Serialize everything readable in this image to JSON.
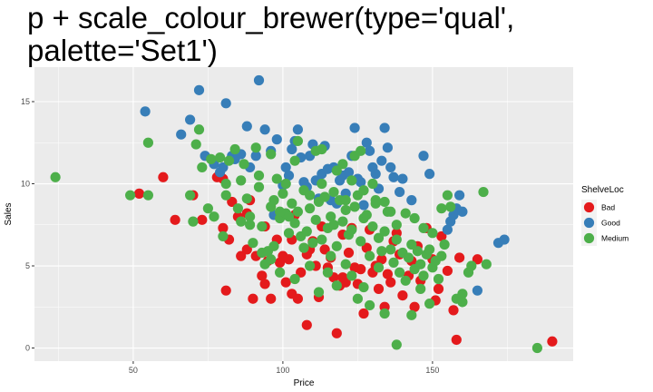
{
  "colors": {
    "panel_bg": "#ebebeb",
    "grid_major": "#ffffff",
    "Bad": "#e41a1c",
    "Good": "#377eb8",
    "Medium": "#4daf4a"
  },
  "chart_data": {
    "type": "scatter",
    "title": "p + scale_colour_brewer(type='qual', palette='Set1')",
    "title_lines": [
      "p + scale_colour_brewer(type='qual',",
      "palette='Set1')"
    ],
    "xlabel": "Price",
    "ylabel": "Sales",
    "xlim": [
      17,
      197
    ],
    "ylim": [
      -0.8,
      17.1
    ],
    "x_ticks": [
      50,
      100,
      150
    ],
    "y_ticks": [
      0,
      5,
      10,
      15
    ],
    "grid": true,
    "legend": {
      "title": "ShelveLoc",
      "position": "right",
      "entries": [
        "Bad",
        "Good",
        "Medium"
      ]
    },
    "series": [
      {
        "name": "Bad",
        "points": [
          [
            52,
            9.4
          ],
          [
            64,
            7.8
          ],
          [
            70,
            9.3
          ],
          [
            73,
            7.8
          ],
          [
            78,
            10.4
          ],
          [
            80,
            7.3
          ],
          [
            80,
            10.3
          ],
          [
            81,
            3.5
          ],
          [
            82,
            6.6
          ],
          [
            83,
            8.9
          ],
          [
            85,
            8.0
          ],
          [
            88,
            6.0
          ],
          [
            88,
            8.2
          ],
          [
            89,
            9.0
          ],
          [
            90,
            3.0
          ],
          [
            91,
            5.6
          ],
          [
            93,
            4.4
          ],
          [
            94,
            3.9
          ],
          [
            94,
            7.4
          ],
          [
            95,
            5.3
          ],
          [
            96,
            3.0
          ],
          [
            98,
            6.6
          ],
          [
            99,
            5.2
          ],
          [
            100,
            5.6
          ],
          [
            101,
            4.0
          ],
          [
            103,
            3.3
          ],
          [
            103,
            6.6
          ],
          [
            104,
            8.1
          ],
          [
            105,
            3.0
          ],
          [
            106,
            4.6
          ],
          [
            108,
            5.7
          ],
          [
            108,
            1.4
          ],
          [
            110,
            6.5
          ],
          [
            111,
            5.0
          ],
          [
            112,
            3.1
          ],
          [
            113,
            7.4
          ],
          [
            114,
            6.0
          ],
          [
            115,
            4.9
          ],
          [
            116,
            5.5
          ],
          [
            117,
            4.3
          ],
          [
            118,
            0.9
          ],
          [
            119,
            3.8
          ],
          [
            120,
            6.9
          ],
          [
            120,
            4.3
          ],
          [
            121,
            4.0
          ],
          [
            123,
            7.3
          ],
          [
            124,
            4.9
          ],
          [
            125,
            3.9
          ],
          [
            126,
            4.8
          ],
          [
            127,
            2.1
          ],
          [
            128,
            6.1
          ],
          [
            129,
            7.2
          ],
          [
            130,
            4.6
          ],
          [
            131,
            5.0
          ],
          [
            132,
            3.6
          ],
          [
            133,
            5.4
          ],
          [
            134,
            2.5
          ],
          [
            135,
            4.5
          ],
          [
            137,
            6.5
          ],
          [
            138,
            7.0
          ],
          [
            139,
            5.7
          ],
          [
            140,
            3.2
          ],
          [
            142,
            4.4
          ],
          [
            143,
            5.3
          ],
          [
            144,
            2.5
          ],
          [
            145,
            6.2
          ],
          [
            146,
            4.1
          ],
          [
            148,
            7.3
          ],
          [
            150,
            5.4
          ],
          [
            151,
            2.9
          ],
          [
            152,
            3.6
          ],
          [
            153,
            6.8
          ],
          [
            155,
            4.7
          ],
          [
            157,
            2.3
          ],
          [
            158,
            0.5
          ],
          [
            159,
            5.5
          ],
          [
            165,
            5.4
          ],
          [
            190,
            0.4
          ],
          [
            60,
            10.4
          ],
          [
            86,
            5.6
          ],
          [
            102,
            5.4
          ],
          [
            109,
            6.0
          ],
          [
            122,
            5.8
          ],
          [
            136,
            4.0
          ]
        ]
      },
      {
        "name": "Good",
        "points": [
          [
            54,
            14.4
          ],
          [
            66,
            13.0
          ],
          [
            69,
            13.9
          ],
          [
            72,
            15.7
          ],
          [
            74,
            11.7
          ],
          [
            77,
            11.2
          ],
          [
            79,
            10.7
          ],
          [
            80,
            11.0
          ],
          [
            81,
            14.9
          ],
          [
            83,
            11.7
          ],
          [
            84,
            11.5
          ],
          [
            86,
            11.8
          ],
          [
            88,
            13.5
          ],
          [
            89,
            11.0
          ],
          [
            91,
            11.7
          ],
          [
            92,
            16.3
          ],
          [
            94,
            13.3
          ],
          [
            96,
            12.0
          ],
          [
            97,
            8.1
          ],
          [
            98,
            12.7
          ],
          [
            100,
            9.9
          ],
          [
            101,
            11.0
          ],
          [
            102,
            10.5
          ],
          [
            103,
            12.1
          ],
          [
            104,
            12.6
          ],
          [
            105,
            13.3
          ],
          [
            106,
            11.6
          ],
          [
            107,
            10.1
          ],
          [
            108,
            9.8
          ],
          [
            109,
            11.7
          ],
          [
            110,
            12.4
          ],
          [
            111,
            10.2
          ],
          [
            112,
            9.1
          ],
          [
            113,
            10.6
          ],
          [
            114,
            12.3
          ],
          [
            115,
            10.9
          ],
          [
            116,
            9.0
          ],
          [
            117,
            11.0
          ],
          [
            118,
            8.8
          ],
          [
            119,
            10.2
          ],
          [
            120,
            10.5
          ],
          [
            121,
            9.4
          ],
          [
            122,
            10.7
          ],
          [
            123,
            11.7
          ],
          [
            124,
            13.4
          ],
          [
            125,
            10.3
          ],
          [
            126,
            10.1
          ],
          [
            127,
            8.7
          ],
          [
            128,
            12.5
          ],
          [
            129,
            12.0
          ],
          [
            130,
            11.0
          ],
          [
            131,
            10.6
          ],
          [
            132,
            9.7
          ],
          [
            133,
            11.4
          ],
          [
            134,
            13.4
          ],
          [
            135,
            12.2
          ],
          [
            136,
            11.0
          ],
          [
            137,
            10.4
          ],
          [
            139,
            9.5
          ],
          [
            140,
            10.3
          ],
          [
            143,
            9.0
          ],
          [
            147,
            11.7
          ],
          [
            149,
            10.6
          ],
          [
            155,
            7.2
          ],
          [
            156,
            7.7
          ],
          [
            157,
            8.1
          ],
          [
            158,
            8.5
          ],
          [
            159,
            9.3
          ],
          [
            160,
            8.3
          ],
          [
            165,
            3.5
          ],
          [
            172,
            6.4
          ],
          [
            174,
            6.6
          ]
        ]
      },
      {
        "name": "Medium",
        "points": [
          [
            24,
            10.4
          ],
          [
            49,
            9.3
          ],
          [
            55,
            9.3
          ],
          [
            55,
            12.5
          ],
          [
            69,
            9.3
          ],
          [
            70,
            7.7
          ],
          [
            71,
            12.4
          ],
          [
            72,
            13.3
          ],
          [
            73,
            11.0
          ],
          [
            75,
            8.5
          ],
          [
            76,
            11.5
          ],
          [
            77,
            8.0
          ],
          [
            79,
            11.6
          ],
          [
            80,
            6.8
          ],
          [
            81,
            9.3
          ],
          [
            82,
            11.4
          ],
          [
            84,
            12.1
          ],
          [
            85,
            8.5
          ],
          [
            86,
            7.7
          ],
          [
            87,
            11.2
          ],
          [
            88,
            9.1
          ],
          [
            89,
            7.5
          ],
          [
            90,
            6.4
          ],
          [
            91,
            12.2
          ],
          [
            92,
            9.8
          ],
          [
            93,
            7.4
          ],
          [
            94,
            5.1
          ],
          [
            95,
            5.9
          ],
          [
            96,
            8.6
          ],
          [
            97,
            6.2
          ],
          [
            98,
            10.3
          ],
          [
            99,
            7.9
          ],
          [
            100,
            9.4
          ],
          [
            101,
            8.2
          ],
          [
            102,
            7.0
          ],
          [
            103,
            8.8
          ],
          [
            104,
            7.6
          ],
          [
            105,
            8.3
          ],
          [
            106,
            6.8
          ],
          [
            107,
            9.6
          ],
          [
            108,
            7.1
          ],
          [
            109,
            8.5
          ],
          [
            110,
            6.4
          ],
          [
            111,
            7.8
          ],
          [
            112,
            8.9
          ],
          [
            113,
            6.6
          ],
          [
            114,
            9.2
          ],
          [
            115,
            7.3
          ],
          [
            116,
            8.0
          ],
          [
            117,
            7.5
          ],
          [
            118,
            6.2
          ],
          [
            119,
            9.0
          ],
          [
            120,
            7.7
          ],
          [
            121,
            8.4
          ],
          [
            122,
            6.9
          ],
          [
            123,
            7.2
          ],
          [
            124,
            8.6
          ],
          [
            125,
            9.3
          ],
          [
            126,
            6.5
          ],
          [
            127,
            7.9
          ],
          [
            128,
            8.1
          ],
          [
            129,
            5.6
          ],
          [
            130,
            7.4
          ],
          [
            131,
            8.8
          ],
          [
            132,
            6.7
          ],
          [
            133,
            5.9
          ],
          [
            134,
            7.1
          ],
          [
            135,
            8.3
          ],
          [
            136,
            6.0
          ],
          [
            137,
            5.2
          ],
          [
            138,
            6.6
          ],
          [
            139,
            4.6
          ],
          [
            140,
            5.8
          ],
          [
            141,
            4.1
          ],
          [
            142,
            5.5
          ],
          [
            143,
            6.3
          ],
          [
            144,
            4.8
          ],
          [
            145,
            5.9
          ],
          [
            146,
            5.1
          ],
          [
            147,
            4.4
          ],
          [
            148,
            5.7
          ],
          [
            149,
            6.0
          ],
          [
            150,
            4.9
          ],
          [
            151,
            5.3
          ],
          [
            152,
            4.2
          ],
          [
            153,
            5.6
          ],
          [
            154,
            6.3
          ],
          [
            155,
            9.3
          ],
          [
            156,
            8.6
          ],
          [
            158,
            3.0
          ],
          [
            160,
            2.8
          ],
          [
            162,
            4.6
          ],
          [
            163,
            5.0
          ],
          [
            167,
            9.5
          ],
          [
            168,
            5.1
          ],
          [
            185,
            0.0
          ],
          [
            138,
            0.2
          ],
          [
            129,
            2.6
          ],
          [
            134,
            2.1
          ],
          [
            125,
            3.0
          ],
          [
            118,
            3.8
          ],
          [
            112,
            3.4
          ],
          [
            104,
            4.2
          ],
          [
            99,
            4.6
          ],
          [
            96,
            5.4
          ],
          [
            93,
            5.8
          ],
          [
            121,
            5.1
          ],
          [
            116,
            5.6
          ],
          [
            109,
            5.0
          ],
          [
            107,
            6.1
          ],
          [
            113,
            12.1
          ],
          [
            105,
            12.6
          ],
          [
            104,
            11.4
          ],
          [
            96,
            11.8
          ],
          [
            109,
            9.3
          ],
          [
            113,
            10.0
          ],
          [
            117,
            9.5
          ],
          [
            121,
            9.0
          ],
          [
            127,
            9.6
          ],
          [
            131,
            9.0
          ],
          [
            136,
            8.3
          ],
          [
            141,
            8.2
          ],
          [
            144,
            7.9
          ],
          [
            147,
            7.3
          ],
          [
            150,
            7.0
          ],
          [
            153,
            8.5
          ],
          [
            138,
            7.5
          ],
          [
            134,
            8.9
          ],
          [
            130,
            10.0
          ],
          [
            123,
            10.2
          ],
          [
            118,
            10.8
          ],
          [
            101,
            10.0
          ],
          [
            97,
            9.0
          ],
          [
            92,
            10.5
          ],
          [
            86,
            10.2
          ],
          [
            81,
            10.0
          ],
          [
            89,
            8.0
          ],
          [
            115,
            4.6
          ],
          [
            123,
            4.4
          ],
          [
            127,
            3.7
          ],
          [
            132,
            4.9
          ],
          [
            146,
            3.6
          ],
          [
            149,
            2.7
          ],
          [
            143,
            2.0
          ],
          [
            160,
            3.3
          ],
          [
            111,
            12.0
          ],
          [
            102,
            8.0
          ],
          [
            99,
            8.3
          ],
          [
            120,
            11.2
          ],
          [
            124,
            11.7
          ],
          [
            126,
            12.0
          ]
        ]
      }
    ]
  }
}
